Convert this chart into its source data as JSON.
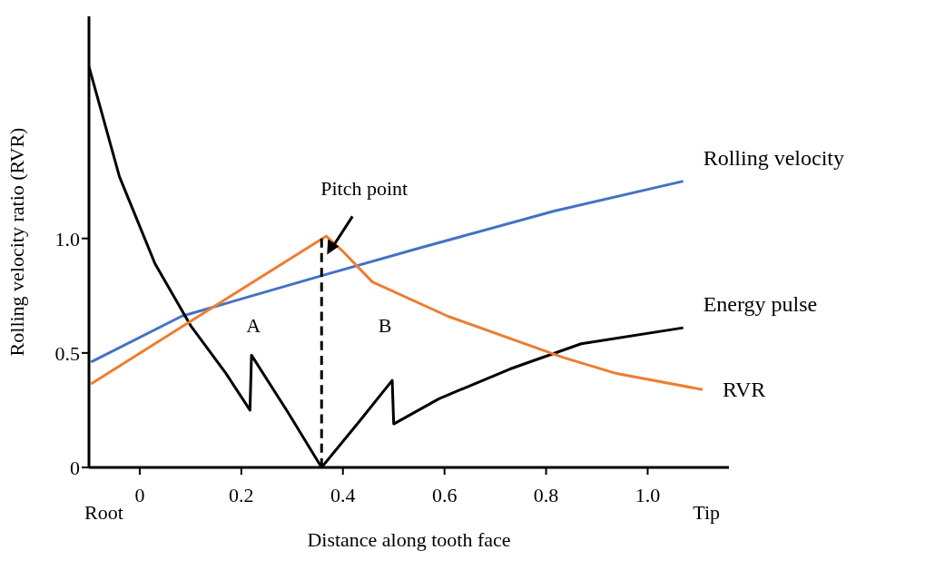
{
  "chart_data": {
    "type": "line",
    "xlabel": "Distance along tooth face",
    "ylabel": "Rolling velocity ratio (RVR)",
    "xlim": [
      -0.1,
      1.16
    ],
    "xticks": [
      0,
      0.2,
      0.4,
      0.6,
      0.8,
      {
        "value": 1,
        "label": "1.0"
      }
    ],
    "ylim": [
      0,
      1.97
    ],
    "yticks": [
      0,
      0.5,
      {
        "value": 1,
        "label": "1.0"
      }
    ],
    "grid": false,
    "legend": false,
    "marker": "none",
    "series": [
      {
        "name": "Rolling velocity",
        "color": "#4472c4",
        "x": [
          -0.096,
          0.082,
          0.362,
          0.554,
          0.816,
          1.07
        ],
        "values": [
          0.46,
          0.66,
          0.84,
          0.96,
          1.12,
          1.25
        ]
      },
      {
        "name": "Energy pulse",
        "color": "#000000",
        "x": [
          -0.1,
          -0.04,
          0.03,
          0.1,
          0.17,
          0.217,
          0.22,
          0.292,
          0.358,
          0.432,
          0.497,
          0.5,
          0.589,
          0.729,
          0.869,
          1.07
        ],
        "values": [
          1.75,
          1.27,
          0.89,
          0.62,
          0.41,
          0.25,
          0.49,
          0.24,
          0,
          0.2,
          0.38,
          0.19,
          0.3,
          0.43,
          0.54,
          0.61
        ]
      },
      {
        "name": "RVR",
        "color": "#ed7d31",
        "x": [
          -0.096,
          0.367,
          0.397,
          0.458,
          0.607,
          0.834,
          0.939,
          1.108
        ],
        "values": [
          0.365,
          1.01,
          0.95,
          0.81,
          0.66,
          0.48,
          0.41,
          0.34
        ]
      },
      {
        "color": "#000000",
        "line_style": "dashed",
        "x": [
          0.358,
          0.358
        ],
        "values": [
          1.0,
          0
        ]
      }
    ],
    "annotations": [
      "Root",
      "Tip",
      "A",
      "B",
      {
        "text": "Pitch point",
        "x": 0.358,
        "y": 0.93
      }
    ]
  }
}
